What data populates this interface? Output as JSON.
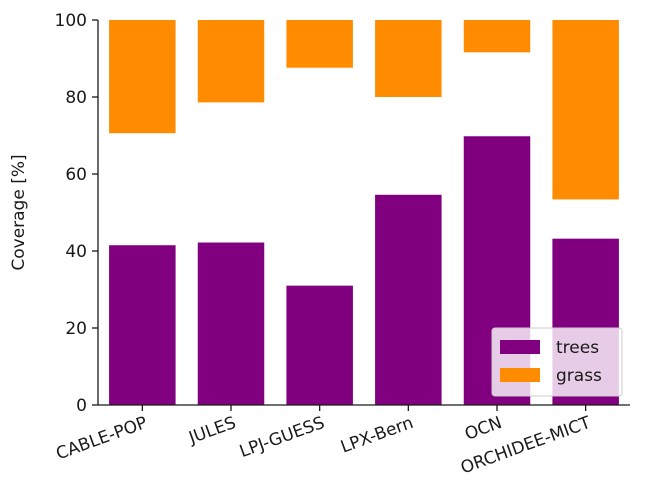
{
  "chart_data": {
    "type": "bar",
    "stacking": "floating-ranges",
    "categories": [
      "CABLE-POP",
      "JULES",
      "LPJ-GUESS",
      "LPX-Bern",
      "OCN",
      "ORCHIDEE-MICT"
    ],
    "series": [
      {
        "name": "trees",
        "color": "#800080",
        "from": [
          0,
          0,
          0,
          0,
          0,
          0
        ],
        "to": [
          41.5,
          42.2,
          31.0,
          54.6,
          69.8,
          43.2
        ]
      },
      {
        "name": "grass",
        "color": "#ff8c00",
        "from": [
          70.6,
          78.6,
          87.6,
          80.0,
          91.6,
          53.4
        ],
        "to": [
          100,
          100,
          100,
          100,
          100,
          100
        ]
      }
    ],
    "ylabel": "Coverage [%]",
    "xlabel": "",
    "title": "",
    "ylim": [
      0,
      100
    ],
    "yticks": [
      0,
      20,
      40,
      60,
      80,
      100
    ],
    "grid": false,
    "legend_position": "lower-right"
  }
}
